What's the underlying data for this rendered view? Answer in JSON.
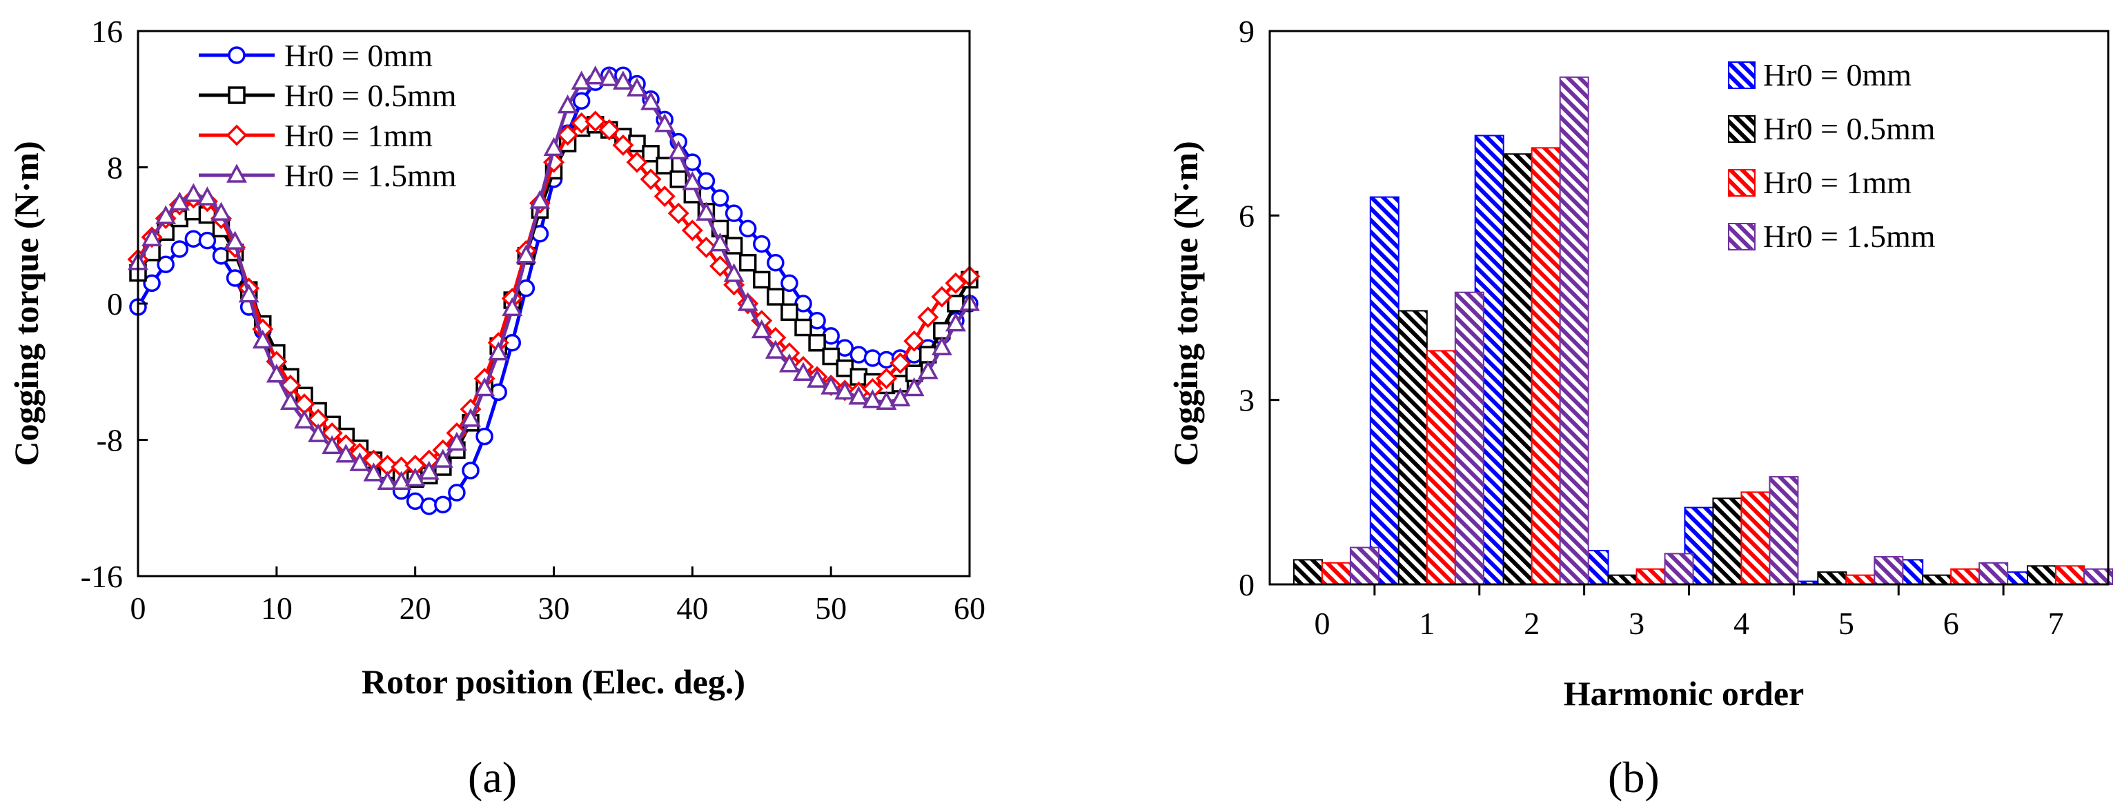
{
  "figure": {
    "panel_labels": [
      "(a)",
      "(b)"
    ],
    "colors": {
      "Hr0 = 0mm": "#0000ff",
      "Hr0 = 0.5mm": "#000000",
      "Hr0 = 1mm": "#ff0000",
      "Hr0 = 1.5mm": "#7030a0"
    }
  },
  "chart_data": [
    {
      "type": "line",
      "panel": "(a)",
      "title": "",
      "xlabel": "Rotor position (Elec. deg.)",
      "ylabel": "Cogging torque (N·m)",
      "xlim": [
        0,
        60
      ],
      "ylim": [
        -16,
        16
      ],
      "xticks": [
        0,
        10,
        20,
        30,
        40,
        50,
        60
      ],
      "yticks": [
        16,
        8,
        0,
        -8,
        -16
      ],
      "grid": false,
      "legend_position": "top-left",
      "series": [
        {
          "name": "Hr0 = 0mm",
          "color": "#0000ff",
          "marker": "circle",
          "x": [
            0,
            1,
            2,
            3,
            4,
            5,
            6,
            7,
            8,
            9,
            10,
            11,
            12,
            13,
            14,
            15,
            16,
            17,
            18,
            19,
            20,
            21,
            22,
            23,
            24,
            25,
            26,
            27,
            28,
            29,
            30,
            31,
            32,
            33,
            34,
            35,
            36,
            37,
            38,
            39,
            40,
            41,
            42,
            43,
            44,
            45,
            46,
            47,
            48,
            49,
            50,
            51,
            52,
            53,
            54,
            55,
            56,
            57,
            58,
            59,
            60
          ],
          "y": [
            -0.2,
            1.2,
            2.3,
            3.2,
            3.8,
            3.7,
            2.8,
            1.5,
            -0.2,
            -1.6,
            -3.0,
            -4.3,
            -5.5,
            -6.6,
            -7.5,
            -8.2,
            -8.8,
            -9.4,
            -10.2,
            -11.0,
            -11.6,
            -11.9,
            -11.8,
            -11.1,
            -9.8,
            -7.8,
            -5.2,
            -2.3,
            0.9,
            4.1,
            7.3,
            10.0,
            11.9,
            13.0,
            13.4,
            13.4,
            12.9,
            12.0,
            10.8,
            9.5,
            8.3,
            7.2,
            6.2,
            5.3,
            4.4,
            3.5,
            2.4,
            1.2,
            0.0,
            -1.0,
            -1.9,
            -2.6,
            -3.0,
            -3.2,
            -3.3,
            -3.2,
            -3.0,
            -2.6,
            -1.9,
            -1.0,
            0.0
          ]
        },
        {
          "name": "Hr0 = 0.5mm",
          "color": "#000000",
          "marker": "square",
          "x": [
            0,
            1,
            2,
            3,
            4,
            5,
            6,
            7,
            8,
            9,
            10,
            11,
            12,
            13,
            14,
            15,
            16,
            17,
            18,
            19,
            20,
            21,
            22,
            23,
            24,
            25,
            26,
            27,
            28,
            29,
            30,
            31,
            32,
            33,
            34,
            35,
            36,
            37,
            38,
            39,
            40,
            41,
            42,
            43,
            44,
            45,
            46,
            47,
            48,
            49,
            50,
            51,
            52,
            53,
            54,
            55,
            56,
            57,
            58,
            59,
            60
          ],
          "y": [
            1.8,
            3.0,
            4.2,
            5.0,
            5.4,
            5.2,
            4.4,
            3.0,
            0.8,
            -1.2,
            -2.9,
            -4.3,
            -5.4,
            -6.3,
            -7.1,
            -7.8,
            -8.5,
            -9.2,
            -9.8,
            -10.2,
            -10.3,
            -10.1,
            -9.6,
            -8.6,
            -7.0,
            -4.9,
            -2.5,
            0.2,
            2.8,
            5.5,
            7.8,
            9.4,
            10.3,
            10.5,
            10.2,
            9.8,
            9.4,
            8.8,
            8.1,
            7.3,
            6.4,
            5.4,
            4.4,
            3.4,
            2.4,
            1.4,
            0.4,
            -0.5,
            -1.4,
            -2.3,
            -3.1,
            -3.8,
            -4.3,
            -4.6,
            -4.8,
            -4.7,
            -4.1,
            -3.0,
            -1.6,
            0.0,
            1.4
          ]
        },
        {
          "name": "Hr0 = 1mm",
          "color": "#ff0000",
          "marker": "diamond",
          "x": [
            0,
            1,
            2,
            3,
            4,
            5,
            6,
            7,
            8,
            9,
            10,
            11,
            12,
            13,
            14,
            15,
            16,
            17,
            18,
            19,
            20,
            21,
            22,
            23,
            24,
            25,
            26,
            27,
            28,
            29,
            30,
            31,
            32,
            33,
            34,
            35,
            36,
            37,
            38,
            39,
            40,
            41,
            42,
            43,
            44,
            45,
            46,
            47,
            48,
            49,
            50,
            51,
            52,
            53,
            54,
            55,
            56,
            57,
            58,
            59,
            60
          ],
          "y": [
            2.6,
            3.9,
            5.0,
            5.8,
            6.2,
            6.0,
            5.0,
            3.3,
            0.9,
            -1.5,
            -3.4,
            -4.8,
            -5.9,
            -6.8,
            -7.6,
            -8.3,
            -8.8,
            -9.2,
            -9.5,
            -9.6,
            -9.5,
            -9.2,
            -8.6,
            -7.6,
            -6.2,
            -4.4,
            -2.3,
            0.3,
            3.1,
            5.9,
            8.3,
            9.9,
            10.6,
            10.7,
            10.2,
            9.3,
            8.3,
            7.3,
            6.3,
            5.3,
            4.3,
            3.3,
            2.2,
            1.1,
            0.0,
            -1.0,
            -2.0,
            -2.9,
            -3.7,
            -4.3,
            -4.8,
            -5.1,
            -5.2,
            -5.0,
            -4.4,
            -3.5,
            -2.2,
            -0.8,
            0.4,
            1.2,
            1.6
          ]
        },
        {
          "name": "Hr0 = 1.5mm",
          "color": "#7030a0",
          "marker": "triangle",
          "x": [
            0,
            1,
            2,
            3,
            4,
            5,
            6,
            7,
            8,
            9,
            10,
            11,
            12,
            13,
            14,
            15,
            16,
            17,
            18,
            19,
            20,
            21,
            22,
            23,
            24,
            25,
            26,
            27,
            28,
            29,
            30,
            31,
            32,
            33,
            34,
            35,
            36,
            37,
            38,
            39,
            40,
            41,
            42,
            43,
            44,
            45,
            46,
            47,
            48,
            49,
            50,
            51,
            52,
            53,
            54,
            55,
            56,
            57,
            58,
            59,
            60
          ],
          "y": [
            2.4,
            3.8,
            5.1,
            5.9,
            6.4,
            6.2,
            5.3,
            3.6,
            0.5,
            -2.2,
            -4.2,
            -5.8,
            -6.9,
            -7.7,
            -8.4,
            -8.9,
            -9.4,
            -10.0,
            -10.5,
            -10.5,
            -10.3,
            -9.9,
            -9.2,
            -8.2,
            -6.8,
            -5.0,
            -2.9,
            -0.3,
            2.8,
            6.0,
            9.1,
            11.6,
            13.0,
            13.3,
            13.2,
            13.0,
            12.6,
            11.8,
            10.5,
            8.9,
            7.1,
            5.3,
            3.5,
            1.7,
            0.0,
            -1.6,
            -2.8,
            -3.6,
            -4.1,
            -4.5,
            -4.9,
            -5.2,
            -5.5,
            -5.7,
            -5.8,
            -5.6,
            -5.0,
            -4.0,
            -2.6,
            -1.2,
            0.0
          ]
        }
      ]
    },
    {
      "type": "bar",
      "panel": "(b)",
      "title": "",
      "xlabel": "Harmonic order",
      "ylabel": "Cogging torque (N·m)",
      "categories": [
        "0",
        "1",
        "2",
        "3",
        "4",
        "5",
        "6",
        "7"
      ],
      "ylim": [
        0,
        9
      ],
      "yticks": [
        0,
        3,
        6,
        9
      ],
      "grid": false,
      "legend_position": "top-right",
      "fill": "diagonal hatch",
      "series": [
        {
          "name": "Hr0 = 0mm",
          "color": "#0000ff",
          "values": [
            0.0,
            6.3,
            7.3,
            0.55,
            1.25,
            0.05,
            0.4,
            0.2
          ]
        },
        {
          "name": "Hr0 = 0.5mm",
          "color": "#000000",
          "values": [
            0.4,
            4.45,
            7.0,
            0.15,
            1.4,
            0.2,
            0.15,
            0.3
          ]
        },
        {
          "name": "Hr0 = 1mm",
          "color": "#ff0000",
          "values": [
            0.35,
            3.8,
            7.1,
            0.25,
            1.5,
            0.15,
            0.25,
            0.3
          ]
        },
        {
          "name": "Hr0 = 1.5mm",
          "color": "#7030a0",
          "values": [
            0.6,
            4.75,
            8.25,
            0.5,
            1.75,
            0.45,
            0.35,
            0.25
          ]
        }
      ]
    }
  ]
}
